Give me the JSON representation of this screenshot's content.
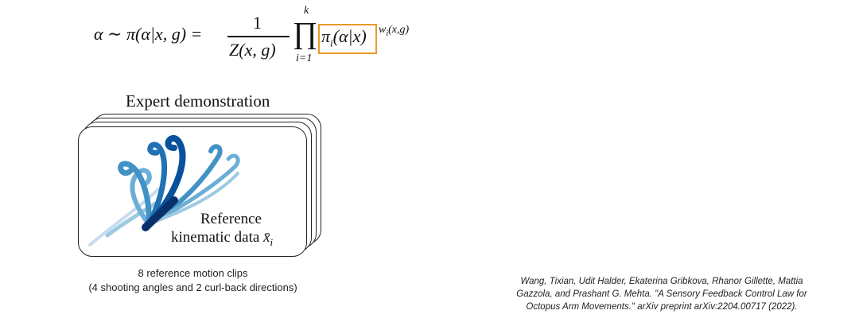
{
  "equation": {
    "lhs": "α ∼ π(α|x, g) =",
    "numerator": "1",
    "denominator": "Z(x, g)",
    "product_upper": "k",
    "product_symbol": "∏",
    "product_lower": "i=1",
    "factor": "π",
    "factor_sub": "i",
    "factor_arg": "(α|x)",
    "exponent": "w",
    "exponent_sub": "i",
    "exponent_arg": "(x,g)",
    "highlight_color": "#e89a2c"
  },
  "diagram": {
    "title": "Expert demonstration",
    "label_line1": "Reference",
    "label_line2_text": "kinematic data ",
    "label_line2_symbol": "x̄",
    "label_line2_sub": "i",
    "stack_count": 4,
    "arm_colors": [
      "#08306b",
      "#08519c",
      "#2171b5",
      "#4292c6",
      "#6baed6",
      "#9ecae1",
      "#c6dbef"
    ]
  },
  "caption": {
    "line1": "8 reference motion clips",
    "line2": "(4 shooting angles and 2 curl-back directions)"
  },
  "citation": {
    "line1": "Wang, Tixian, Udit Halder, Ekaterina Gribkova, Rhanor Gillette, Mattia",
    "line2": "Gazzola, and Prashant G. Mehta. \"A Sensory Feedback Control Law for",
    "line3": "Octopus Arm Movements.\" arXiv preprint arXiv:2204.00717 (2022)."
  }
}
